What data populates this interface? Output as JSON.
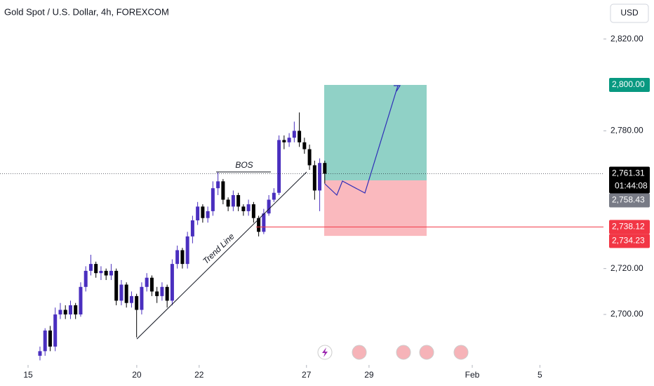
{
  "chart_data": {
    "type": "candlestick",
    "title": "Gold Spot / U.S. Dollar, 4h, FOREXCOM",
    "currency": "USD",
    "up_color": "#4a2fbf",
    "down_color": "#000000",
    "open": [
      2682,
      2684,
      2693,
      2686,
      2700,
      2702,
      2700,
      2704,
      2700,
      2712,
      2719,
      2722,
      2718,
      2719,
      2717,
      2719,
      2706,
      2713,
      2705,
      2708,
      2702,
      2712,
      2716,
      2710,
      2708,
      2712,
      2706,
      2722,
      2728,
      2722,
      2734,
      2741,
      2747,
      2742,
      2745,
      2755,
      2758,
      2750,
      2747,
      2752,
      2747,
      2745,
      2748,
      2742,
      2736,
      2744,
      2750,
      2753,
      2776,
      2775,
      2777,
      2780,
      2775,
      2772,
      2765,
      2754,
      2766
    ],
    "high": [
      2686,
      2694,
      2695,
      2703,
      2705,
      2704,
      2706,
      2705,
      2714,
      2721,
      2726,
      2723,
      2721,
      2720,
      2722,
      2720,
      2715,
      2714,
      2710,
      2709,
      2714,
      2718,
      2717,
      2712,
      2714,
      2713,
      2724,
      2730,
      2729,
      2736,
      2743,
      2749,
      2748,
      2747,
      2758,
      2762,
      2759,
      2751,
      2754,
      2753,
      2748,
      2750,
      2749,
      2743,
      2746,
      2752,
      2755,
      2778,
      2778,
      2779,
      2784,
      2788,
      2777,
      2774,
      2767,
      2768,
      2767
    ],
    "low": [
      2680,
      2682,
      2684,
      2684,
      2698,
      2698,
      2698,
      2698,
      2699,
      2710,
      2717,
      2716,
      2715,
      2715,
      2715,
      2704,
      2704,
      2703,
      2703,
      2690,
      2700,
      2710,
      2708,
      2705,
      2706,
      2703,
      2704,
      2720,
      2720,
      2720,
      2731,
      2739,
      2740,
      2740,
      2743,
      2752,
      2748,
      2745,
      2745,
      2745,
      2743,
      2743,
      2740,
      2734,
      2735,
      2743,
      2749,
      2752,
      2772,
      2773,
      2775,
      2773,
      2770,
      2763,
      2750,
      2745,
      2757
    ],
    "close": [
      2684,
      2693,
      2686,
      2700,
      2702,
      2700,
      2704,
      2700,
      2712,
      2719,
      2722,
      2718,
      2719,
      2717,
      2719,
      2706,
      2713,
      2705,
      2708,
      2702,
      2712,
      2716,
      2710,
      2708,
      2712,
      2706,
      2722,
      2728,
      2722,
      2734,
      2741,
      2747,
      2742,
      2745,
      2755,
      2758,
      2750,
      2747,
      2752,
      2747,
      2745,
      2748,
      2742,
      2736,
      2744,
      2750,
      2753,
      2776,
      2775,
      2777,
      2780,
      2775,
      2772,
      2765,
      2754,
      2766,
      2761.31
    ],
    "xlim": [
      -7.86,
      110.8
    ],
    "xticks": [
      {
        "value": -2.34,
        "label": "15"
      },
      {
        "value": 19.03,
        "label": "20"
      },
      {
        "value": 31.3,
        "label": "22"
      },
      {
        "value": 52.4,
        "label": "27"
      },
      {
        "value": 64.7,
        "label": "29"
      },
      {
        "value": 85.0,
        "label": "Feb"
      },
      {
        "value": 98.3,
        "label": "5"
      }
    ],
    "ylim": [
      2678,
      2837
    ],
    "yticks": [
      {
        "value": 2700,
        "label": "2,700.00"
      },
      {
        "value": 2720,
        "label": "2,720.00"
      },
      {
        "value": 2780,
        "label": "2,780.00"
      },
      {
        "value": 2820,
        "label": "2,820.00"
      }
    ],
    "position": {
      "target": 2800,
      "entry": 2758.43,
      "stop": 2734.23
    },
    "levels": [
      {
        "value": 2800,
        "label": "2,800.00",
        "color": "#089981"
      },
      {
        "value": 2761.31,
        "label": "2,761.31",
        "color": "#000000",
        "countdown": "01:44:08"
      },
      {
        "value": 2758.43,
        "label": "2,758.43",
        "color": "#787b86"
      },
      {
        "value": 2738.12,
        "label": "2,738.12",
        "color": "#f23645"
      },
      {
        "value": 2734.23,
        "label": "2,734.23",
        "color": "#f23645"
      }
    ],
    "annotations": [
      "BOS",
      "Trend Line"
    ]
  }
}
